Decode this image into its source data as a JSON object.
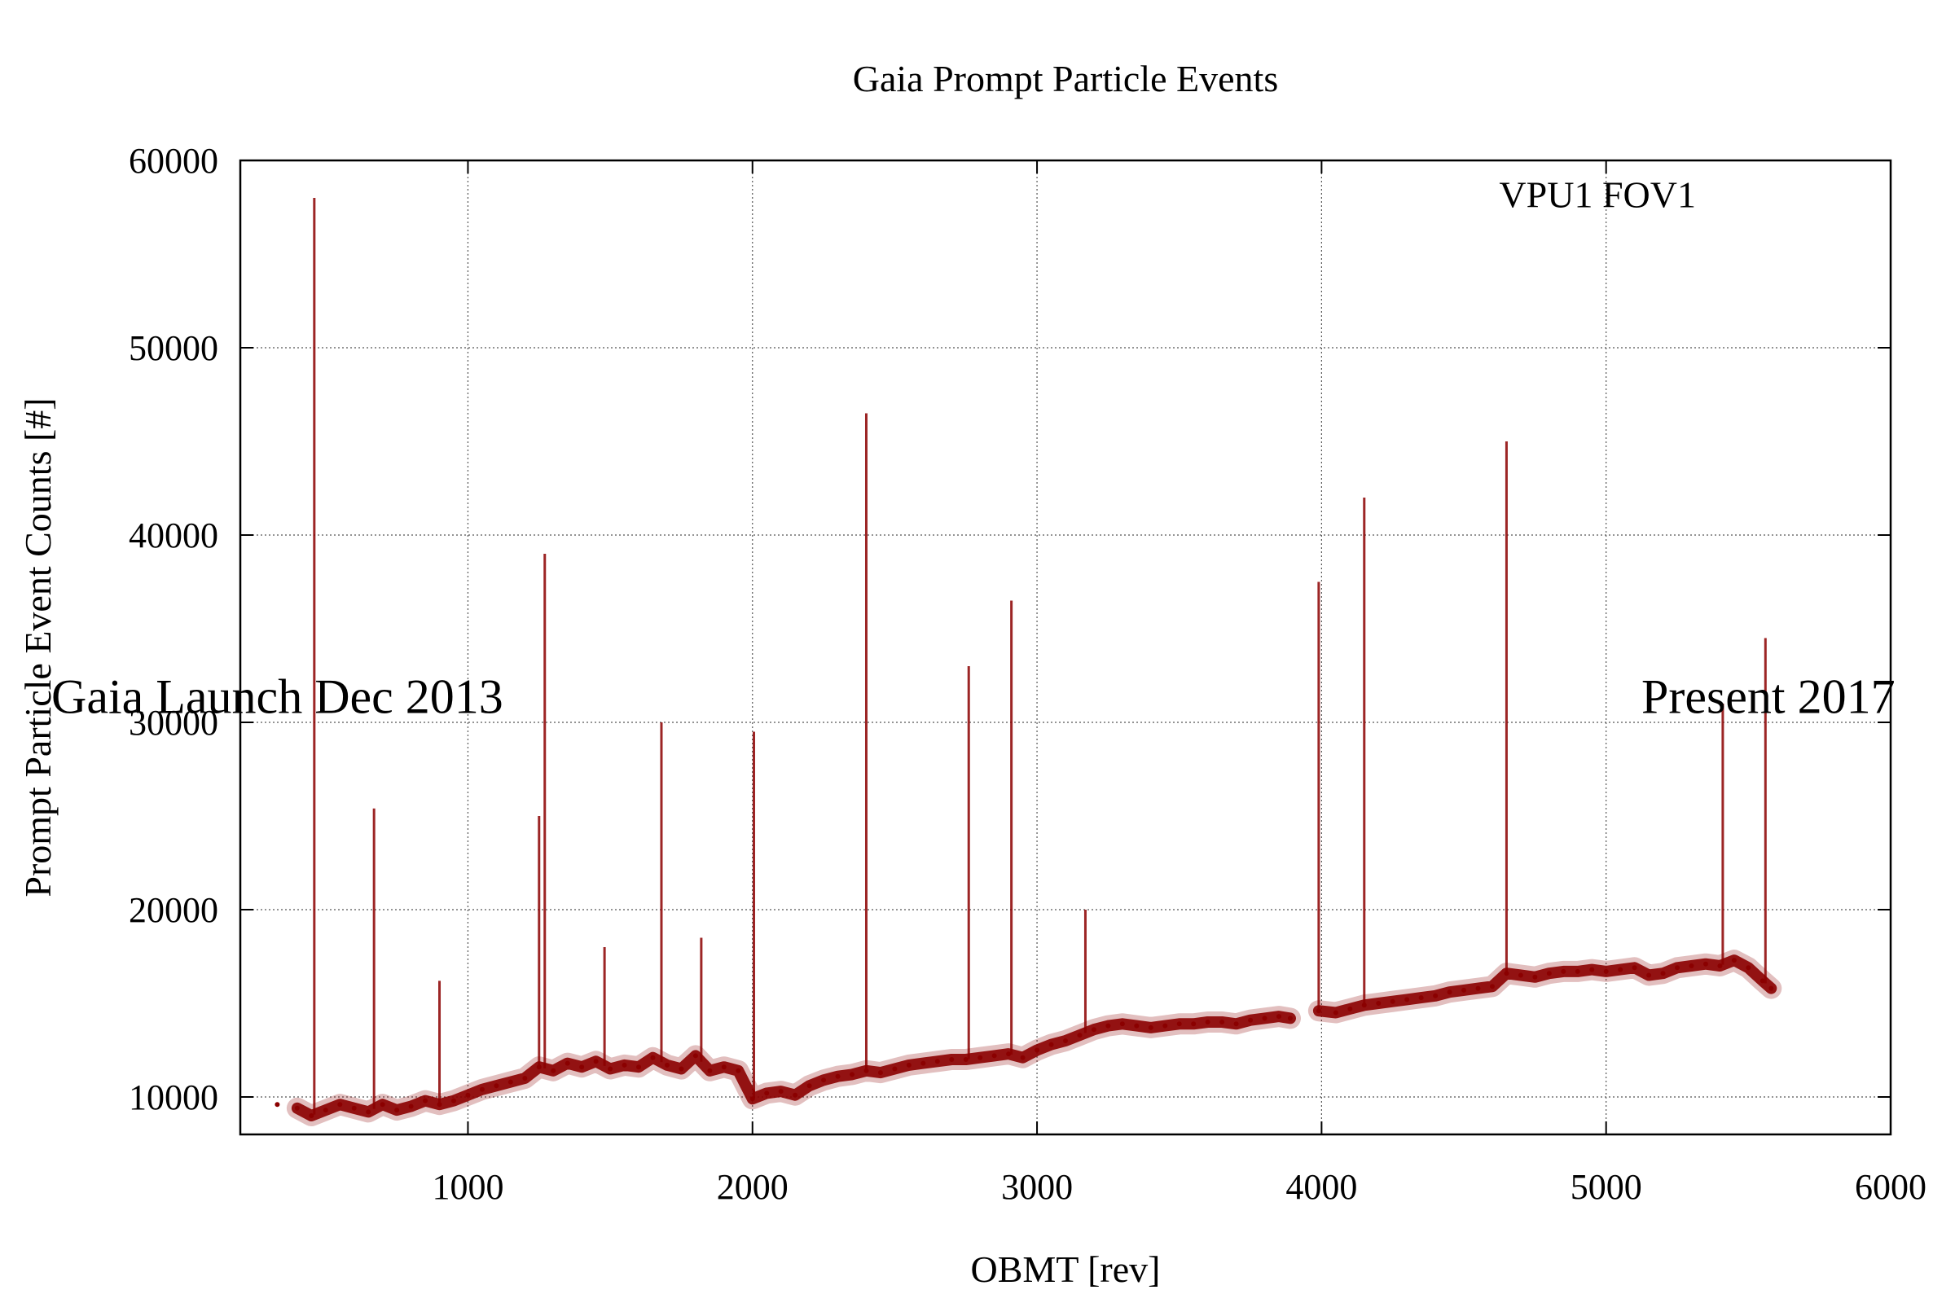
{
  "chart_data": {
    "type": "scatter",
    "title": "Gaia Prompt Particle Events",
    "xlabel": "OBMT [rev]",
    "ylabel": "Prompt Particle Event Counts [#]",
    "xlim": [
      200,
      6000
    ],
    "ylim": [
      8000,
      60000
    ],
    "x_ticks": [
      1000,
      2000,
      3000,
      4000,
      5000,
      6000
    ],
    "y_ticks": [
      10000,
      20000,
      30000,
      40000,
      50000,
      60000
    ],
    "x_tick_labels": [
      "1000",
      "2000",
      "3000",
      "4000",
      "5000",
      "6000"
    ],
    "y_tick_labels": [
      "10000",
      "20000",
      "30000",
      "40000",
      "50000",
      "60000"
    ],
    "grid": true,
    "color": "#8b0000",
    "annotations": [
      {
        "text": "Gaia Launch Dec 2013",
        "x": 330,
        "y": 30500,
        "size": "large"
      },
      {
        "text": "Present 2017",
        "x": 5570,
        "y": 30500,
        "size": "large"
      },
      {
        "text": "VPU1 FOV1",
        "x": 4970,
        "y": 57500,
        "size": "small"
      }
    ],
    "series": [
      {
        "x": [
          330,
          400,
          450,
          500,
          550,
          600,
          650,
          700,
          750,
          800,
          850,
          900,
          950,
          1000,
          1050,
          1100,
          1150,
          1200,
          1250,
          1300,
          1350,
          1400,
          1450,
          1500,
          1550,
          1600,
          1650,
          1700,
          1750,
          1800,
          1850,
          1900,
          1950,
          2000,
          2050,
          2100,
          2150,
          2200,
          2250,
          2300,
          2350,
          2400,
          2450,
          2500,
          2550,
          2600,
          2650,
          2700,
          2750,
          2800,
          2850,
          2900,
          2950,
          3000,
          3050,
          3100,
          3150,
          3200,
          3250,
          3300,
          3350,
          3400,
          3450,
          3500,
          3550,
          3600,
          3650,
          3700,
          3750,
          3800,
          3850,
          3890,
          3990,
          4050,
          4100,
          4150,
          4200,
          4250,
          4300,
          4350,
          4400,
          4450,
          4500,
          4550,
          4600,
          4650,
          4700,
          4750,
          4800,
          4850,
          4900,
          4950,
          5000,
          5050,
          5100,
          5150,
          5200,
          5250,
          5300,
          5350,
          5400,
          5450,
          5500,
          5550,
          5580
        ],
        "y": [
          9600,
          9400,
          9000,
          9300,
          9600,
          9400,
          9200,
          9600,
          9300,
          9500,
          9800,
          9600,
          9800,
          10100,
          10400,
          10600,
          10800,
          11000,
          11600,
          11400,
          11800,
          11600,
          11900,
          11500,
          11700,
          11600,
          12100,
          11700,
          11500,
          12200,
          11400,
          11600,
          11400,
          9900,
          10200,
          10300,
          10100,
          10600,
          10900,
          11100,
          11200,
          11400,
          11300,
          11500,
          11700,
          11800,
          11900,
          12000,
          12000,
          12100,
          12200,
          12300,
          12100,
          12500,
          12800,
          13000,
          13300,
          13600,
          13800,
          13900,
          13800,
          13700,
          13800,
          13900,
          13900,
          14000,
          14000,
          13900,
          14100,
          14200,
          14300,
          14200,
          14600,
          14500,
          14700,
          14900,
          15000,
          15100,
          15200,
          15300,
          15400,
          15600,
          15700,
          15800,
          15900,
          16600,
          16500,
          16400,
          16600,
          16700,
          16700,
          16800,
          16700,
          16800,
          16900,
          16500,
          16600,
          16900,
          17000,
          17100,
          17000,
          17300,
          16900,
          16200,
          15800
        ]
      }
    ],
    "spikes": [
      {
        "x": 460,
        "y": 58000
      },
      {
        "x": 670,
        "y": 25400
      },
      {
        "x": 900,
        "y": 16200
      },
      {
        "x": 1250,
        "y": 25000
      },
      {
        "x": 1270,
        "y": 39000
      },
      {
        "x": 1480,
        "y": 18000
      },
      {
        "x": 1680,
        "y": 30000
      },
      {
        "x": 1820,
        "y": 18500
      },
      {
        "x": 2005,
        "y": 29500
      },
      {
        "x": 2400,
        "y": 46500
      },
      {
        "x": 2760,
        "y": 33000
      },
      {
        "x": 2910,
        "y": 36500
      },
      {
        "x": 3170,
        "y": 20000
      },
      {
        "x": 3990,
        "y": 37500
      },
      {
        "x": 4150,
        "y": 42000
      },
      {
        "x": 4650,
        "y": 45000
      },
      {
        "x": 5410,
        "y": 31000
      },
      {
        "x": 5560,
        "y": 34500
      }
    ]
  }
}
